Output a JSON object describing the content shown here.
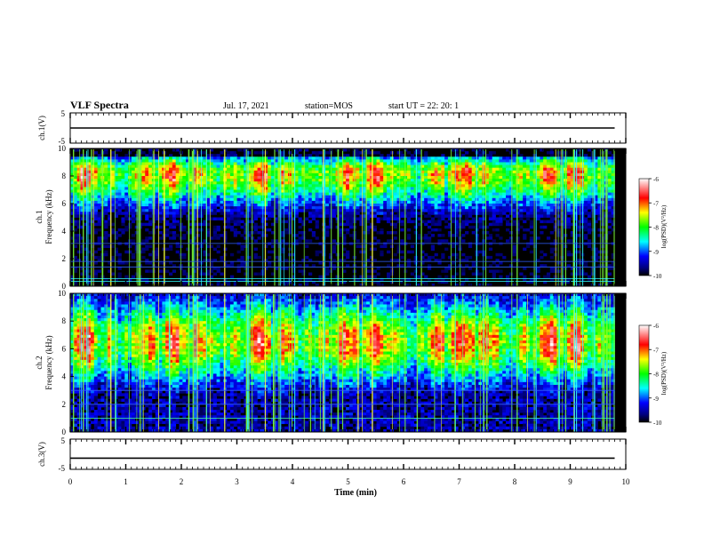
{
  "header": {
    "title": "VLF Spectra",
    "date": "Jul. 17, 2021",
    "station": "station=MOS",
    "start": "start UT = 22: 20: 1"
  },
  "chart_data": [
    {
      "type": "line",
      "panel": "ch1-voltage",
      "ylabel": "ch.1(V)",
      "ylim": [
        -5,
        5
      ],
      "yticks": [
        "5",
        "-5"
      ],
      "xlim": [
        0,
        10
      ],
      "series": [
        {
          "x": [
            0,
            9.8
          ],
          "values": [
            0,
            0
          ]
        }
      ]
    },
    {
      "type": "heatmap",
      "panel": "ch1-spectrogram",
      "ylabel": "ch.1\nFrequency (kHz)",
      "ylim": [
        0,
        10
      ],
      "yticks": [
        "0",
        "2",
        "4",
        "6",
        "8",
        "10"
      ],
      "xlim": [
        0,
        10
      ],
      "data_xmax": 9.8,
      "band_center_khz": 8.2,
      "colorbar": {
        "label": "log(PSD)(V²/Hz)",
        "range": [
          -10,
          -6
        ],
        "ticks": [
          "-6",
          "-7",
          "-8",
          "-9",
          "-10"
        ]
      }
    },
    {
      "type": "heatmap",
      "panel": "ch2-spectrogram",
      "ylabel": "ch.2\nFrequency (kHz)",
      "ylim": [
        0,
        10
      ],
      "yticks": [
        "0",
        "2",
        "4",
        "6",
        "8",
        "10"
      ],
      "xlim": [
        0,
        10
      ],
      "data_xmax": 9.8,
      "band_center_khz": 6.5,
      "colorbar": {
        "label": "log(PSD)(V²/Hz)",
        "range": [
          -10,
          -6
        ],
        "ticks": [
          "-6",
          "-7",
          "-8",
          "-9",
          "-10"
        ]
      }
    },
    {
      "type": "line",
      "panel": "ch3-voltage",
      "ylabel": "ch.3(V)",
      "ylim": [
        -5,
        5
      ],
      "yticks": [
        "5",
        "-5"
      ],
      "xlim": [
        0,
        10
      ],
      "xlabel": "Time (min)",
      "xticks": [
        "0",
        "1",
        "2",
        "3",
        "4",
        "5",
        "6",
        "7",
        "8",
        "9",
        "10"
      ],
      "series": [
        {
          "x": [
            0,
            9.8
          ],
          "values": [
            -1.3,
            -1.3
          ]
        }
      ]
    }
  ]
}
